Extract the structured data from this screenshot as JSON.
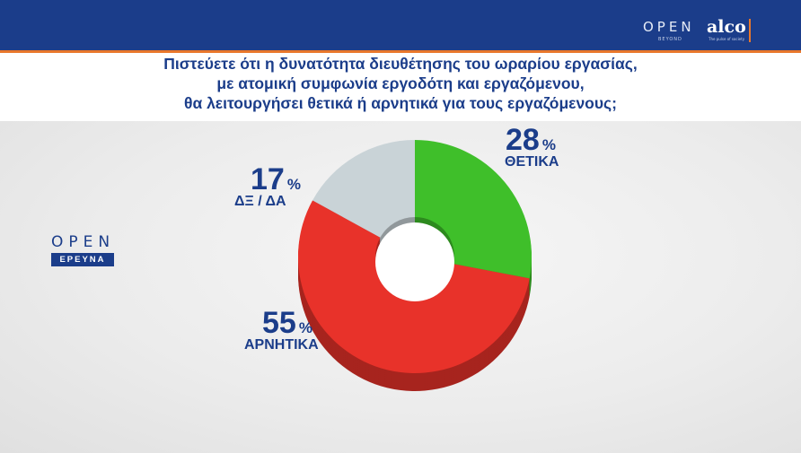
{
  "header": {
    "brand_open": "OPEN",
    "brand_beyond": "BEYOND",
    "brand_alco": "alco",
    "brand_alco_sub": "The pulse of society"
  },
  "question": {
    "line1": "Πιστεύετε ότι η δυνατότητα διευθέτησης του ωραρίου εργασίας,",
    "line2": "με ατομική συμφωνία εργοδότη και εργαζόμενου,",
    "line3": "θα λειτουργήσει θετικά ή αρνητικά για τους εργαζόμενους;"
  },
  "logo": {
    "word": "OPEN",
    "tag": "ΕΡΕΥΝΑ"
  },
  "chart_data": {
    "type": "pie",
    "title": "Πιστεύετε ότι η δυνατότητα διευθέτησης του ωραρίου εργασίας, με ατομική συμφωνία εργοδότη και εργαζόμενου, θα λειτουργήσει θετικά ή αρνητικά για τους εργαζόμενους;",
    "categories": [
      "ΘΕΤΙΚΑ",
      "ΑΡΝΗΤΙΚΑ",
      "ΔΞ / ΔΑ"
    ],
    "values": [
      28,
      55,
      17
    ],
    "unit": "%",
    "colors": [
      "#3fbf2a",
      "#e8322a",
      "#c9d3d7"
    ],
    "style": "3d-donut",
    "labels": {
      "positive": {
        "value": "28",
        "pct": "%",
        "name": "ΘΕΤΙΚΑ"
      },
      "negative": {
        "value": "55",
        "pct": "%",
        "name": "ΑΡΝΗΤΙΚΑ"
      },
      "dk": {
        "value": "17",
        "pct": "%",
        "name": "ΔΞ / ΔΑ"
      }
    }
  }
}
